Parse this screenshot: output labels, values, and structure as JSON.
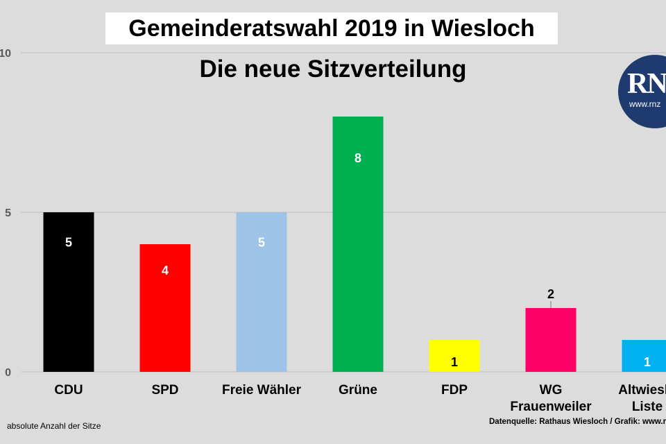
{
  "chart_data": {
    "type": "bar",
    "title": "Gemeinderatswahl 2019 in Wiesloch",
    "subtitle": "Die neue Sitzverteilung",
    "categories": [
      [
        "CDU"
      ],
      [
        "SPD"
      ],
      [
        "Freie Wähler"
      ],
      [
        "Grüne"
      ],
      [
        "FDP"
      ],
      [
        "WG",
        "Frauenweiler"
      ],
      [
        "Altwieslo",
        "Liste"
      ]
    ],
    "values": [
      5,
      4,
      5,
      8,
      1,
      2,
      1
    ],
    "colors": [
      "#000000",
      "#ff0000",
      "#9dc3e6",
      "#00b050",
      "#ffff00",
      "#ff0066",
      "#00b0f0"
    ],
    "label_colors": [
      "#ffffff",
      "#ffffff",
      "#ffffff",
      "#ffffff",
      "#000000",
      "#000000",
      "#ffffff"
    ],
    "label_position": [
      "inside",
      "inside",
      "inside",
      "inside",
      "inside",
      "above",
      "inside"
    ],
    "yticks": [
      0,
      5,
      10
    ],
    "ytick_labels": [
      "0",
      "5",
      "10"
    ],
    "ylim": [
      0,
      10
    ],
    "grid": true
  },
  "footer": {
    "note": "absolute Anzahl der Sitze",
    "source": "Datenquelle: Rathaus Wiesloch / Grafik: www.r"
  },
  "logo": {
    "text": "RN",
    "url": "www.rnz"
  }
}
